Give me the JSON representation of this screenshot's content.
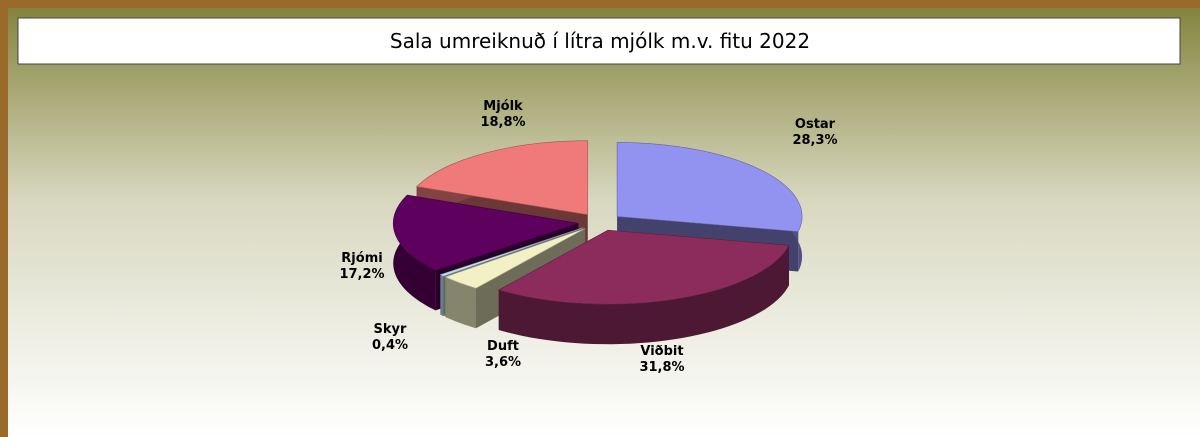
{
  "chart_data": {
    "type": "pie3d",
    "title": "Sala umreiknuð í lítra mjólk m.v. fitu 2022",
    "categories": [
      "Ostar",
      "Viðbit",
      "Duft",
      "Skyr",
      "Rjómi",
      "Mjólk"
    ],
    "values": [
      28.3,
      31.8,
      3.6,
      0.4,
      17.2,
      18.8
    ],
    "value_labels": [
      "28,3%",
      "31,8%",
      "3,6%",
      "0,4%",
      "17,2%",
      "18,8%"
    ],
    "colors": [
      "#9292f0",
      "#8c2c5c",
      "#f2f0c4",
      "#c4e4f4",
      "#5e005e",
      "#f07a7a"
    ]
  }
}
